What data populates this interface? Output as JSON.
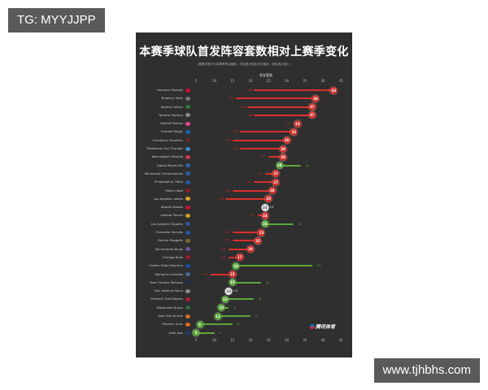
{
  "overlays": {
    "top_left_tag": "TG: MYYJJPP",
    "bottom_right_tag": "www.tjhbhs.com"
  },
  "brand": "腾讯体育",
  "colors": {
    "panel_bg": "#2f2f2f",
    "increase": "#d9302b",
    "decrease": "#5aa63a",
    "unchanged": "#e8e8e8"
  },
  "chart_data": {
    "type": "dumbbell",
    "title": "本赛季球队首发阵容套数相对上赛季变化",
    "subtitle": "(圆圈内数字为本赛季阵容套数，红色表示相比去年增加，绿色表示减少)",
    "xlabel": "首发套数",
    "ylabel": "",
    "xlim": [
      0,
      46
    ],
    "xticks": [
      5,
      10,
      15,
      20,
      25,
      30,
      35,
      40,
      45
    ],
    "grid": false,
    "legend": "none",
    "categories": [
      "Houston Rockets",
      "Brooklyn Nets",
      "Boston Celtics",
      "Toronto Raptors",
      "Detroit Pistons",
      "Orlando Magic",
      "Cleveland Cavaliers",
      "Oklahoma City Thunder",
      "Washington Wizards",
      "Dallas Mavericks",
      "Minnesota Timberwolves",
      "Philadelphia 76ers",
      "Miami Heat",
      "Los Angeles Lakers",
      "Atlanta Hawks",
      "Indiana Pacers",
      "Los Angeles Clippers",
      "Charlotte Hornets",
      "Denver Nuggets",
      "Sacramento Kings",
      "Chicago Bulls",
      "Golden State Warriors",
      "Memphis Grizzlies",
      "New Orleans Pelicans",
      "San Antonio Spurs",
      "Portland Trail Blazers",
      "Milwaukee Bucks",
      "New York Knicks",
      "Phoenix Suns",
      "Utah Jazz"
    ],
    "series": [
      {
        "name": "本赛季",
        "values": [
          43,
          38,
          37,
          37,
          33,
          32,
          30,
          29,
          29,
          28,
          27,
          27,
          26,
          25,
          24,
          24,
          24,
          23,
          22,
          20,
          17,
          16,
          15,
          15,
          14,
          13,
          12,
          11,
          6,
          5
        ]
      },
      {
        "name": "变化",
        "values": [
          22,
          22,
          18,
          16,
          1,
          15,
          15,
          12,
          4,
          -6,
          3,
          6,
          11,
          12,
          0,
          2,
          -8,
          8,
          7,
          6,
          3,
          -21,
          6,
          -8,
          0,
          -8,
          -2,
          -9,
          -9,
          -5
        ]
      }
    ],
    "change_labels": [
      "+22",
      "+22",
      "+18",
      "+16",
      "+1",
      "+15",
      "+15",
      "+12",
      "+4",
      "-6",
      "+3",
      "+6",
      "+11",
      "+12",
      "+0",
      "+2",
      "-8",
      "+8",
      "+7",
      "+6",
      "+3",
      "-21",
      "+6",
      "-8",
      "+0",
      "-8",
      "-2",
      "-9",
      "-9",
      "-5"
    ]
  }
}
